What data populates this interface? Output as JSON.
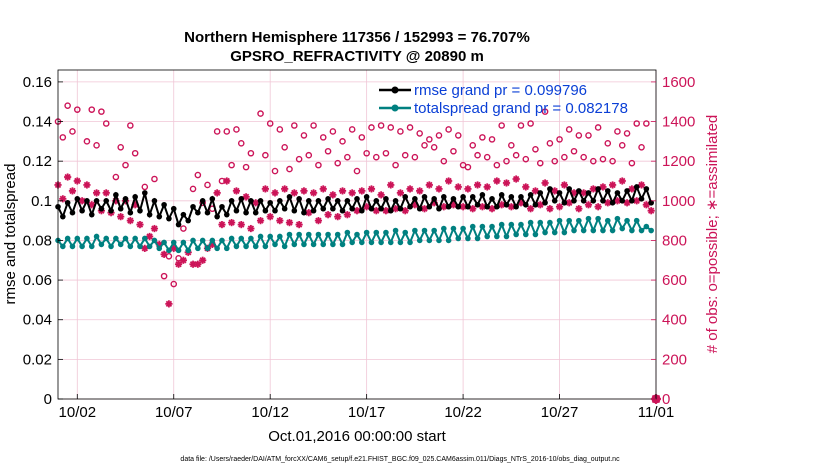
{
  "chart_data": {
    "type": "line",
    "title_line1": "Northern Hemisphere 117356 / 152993 = 76.707%",
    "title_line2": "GPSRO_REFRACTIVITY @ 20890 m",
    "xlabel": "Oct.01,2016 00:00:00 start",
    "ylabel_left": "rmse and totalspread",
    "ylabel_right": "# of obs: o=possible; ∗=assimilated",
    "footnote": "data file: /Users/raeder/DAI/ATM_forcXX/CAM6_setup/f.e21.FHIST_BGC.f09_025.CAM6assim.011/Diags_NTrS_2016-10/obs_diag_output.nc",
    "x_ticks": [
      {
        "value": 1.0,
        "label": "10/02"
      },
      {
        "value": 6.0,
        "label": "10/07"
      },
      {
        "value": 11.0,
        "label": "10/12"
      },
      {
        "value": 16.0,
        "label": "10/17"
      },
      {
        "value": 21.0,
        "label": "10/22"
      },
      {
        "value": 26.0,
        "label": "10/27"
      },
      {
        "value": 31.0,
        "label": "11/01"
      }
    ],
    "xlim": [
      0.0,
      31.0
    ],
    "y_left_ticks": [
      "0",
      "0.02",
      "0.04",
      "0.06",
      "0.08",
      "0.1",
      "0.12",
      "0.14",
      "0.16"
    ],
    "y_left_lim": [
      0,
      0.166
    ],
    "y_right_ticks": [
      "0",
      "200",
      "400",
      "600",
      "800",
      "1000",
      "1200",
      "1400",
      "1600"
    ],
    "y_right_lim": [
      0,
      1660
    ],
    "grid": true,
    "legend_position": "top-right",
    "colors": {
      "rmse": "#000000",
      "totalspread": "#008080",
      "obs": "#cc1458",
      "grid": "#f0c6d6",
      "legend_text": "#0a3fd6"
    },
    "series": [
      {
        "name": "rmse grand pr = 0.099796",
        "axis": "left",
        "marker": "dot",
        "x": [
          0.0,
          0.25,
          0.5,
          0.75,
          1.0,
          1.25,
          1.5,
          1.75,
          2.0,
          2.25,
          2.5,
          2.75,
          3.0,
          3.25,
          3.5,
          3.75,
          4.0,
          4.25,
          4.5,
          4.75,
          5.0,
          5.25,
          5.5,
          5.75,
          6.0,
          6.25,
          6.5,
          6.75,
          7.0,
          7.25,
          7.5,
          7.75,
          8.0,
          8.25,
          8.5,
          8.75,
          9.0,
          9.25,
          9.5,
          9.75,
          10.0,
          10.25,
          10.5,
          10.75,
          11.0,
          11.25,
          11.5,
          11.75,
          12.0,
          12.25,
          12.5,
          12.75,
          13.0,
          13.25,
          13.5,
          13.75,
          14.0,
          14.25,
          14.5,
          14.75,
          15.0,
          15.25,
          15.5,
          15.75,
          16.0,
          16.25,
          16.5,
          16.75,
          17.0,
          17.25,
          17.5,
          17.75,
          18.0,
          18.25,
          18.5,
          18.75,
          19.0,
          19.25,
          19.5,
          19.75,
          20.0,
          20.25,
          20.5,
          20.75,
          21.0,
          21.25,
          21.5,
          21.75,
          22.0,
          22.25,
          22.5,
          22.75,
          23.0,
          23.25,
          23.5,
          23.75,
          24.0,
          24.25,
          24.5,
          24.75,
          25.0,
          25.25,
          25.5,
          25.75,
          26.0,
          26.25,
          26.5,
          26.75,
          27.0,
          27.25,
          27.5,
          27.75,
          28.0,
          28.25,
          28.5,
          28.75,
          29.0,
          29.25,
          29.5,
          29.75,
          30.0,
          30.25,
          30.5,
          30.75
        ],
        "values": [
          0.097,
          0.092,
          0.099,
          0.094,
          0.101,
          0.095,
          0.1,
          0.093,
          0.1,
          0.096,
          0.1,
          0.095,
          0.103,
          0.096,
          0.101,
          0.094,
          0.102,
          0.095,
          0.104,
          0.093,
          0.1,
          0.092,
          0.098,
          0.091,
          0.096,
          0.088,
          0.093,
          0.09,
          0.097,
          0.094,
          0.1,
          0.094,
          0.101,
          0.092,
          0.097,
          0.093,
          0.1,
          0.095,
          0.101,
          0.094,
          0.1,
          0.094,
          0.1,
          0.095,
          0.099,
          0.095,
          0.1,
          0.096,
          0.102,
          0.095,
          0.101,
          0.094,
          0.1,
          0.095,
          0.1,
          0.096,
          0.101,
          0.096,
          0.1,
          0.095,
          0.1,
          0.096,
          0.101,
          0.095,
          0.102,
          0.096,
          0.1,
          0.096,
          0.101,
          0.095,
          0.1,
          0.096,
          0.102,
          0.097,
          0.101,
          0.096,
          0.102,
          0.097,
          0.101,
          0.096,
          0.102,
          0.097,
          0.101,
          0.097,
          0.102,
          0.097,
          0.102,
          0.098,
          0.103,
          0.097,
          0.101,
          0.097,
          0.103,
          0.098,
          0.102,
          0.097,
          0.102,
          0.098,
          0.103,
          0.098,
          0.104,
          0.099,
          0.106,
          0.1,
          0.104,
          0.099,
          0.106,
          0.1,
          0.105,
          0.1,
          0.104,
          0.1,
          0.106,
          0.1,
          0.105,
          0.099,
          0.104,
          0.1,
          0.105,
          0.1,
          0.107,
          0.101,
          0.106,
          0.099
        ]
      },
      {
        "name": "totalspread grand pr = 0.082178",
        "axis": "left",
        "marker": "dot",
        "x": [
          0.0,
          0.25,
          0.5,
          0.75,
          1.0,
          1.25,
          1.5,
          1.75,
          2.0,
          2.25,
          2.5,
          2.75,
          3.0,
          3.25,
          3.5,
          3.75,
          4.0,
          4.25,
          4.5,
          4.75,
          5.0,
          5.25,
          5.5,
          5.75,
          6.0,
          6.25,
          6.5,
          6.75,
          7.0,
          7.25,
          7.5,
          7.75,
          8.0,
          8.25,
          8.5,
          8.75,
          9.0,
          9.25,
          9.5,
          9.75,
          10.0,
          10.25,
          10.5,
          10.75,
          11.0,
          11.25,
          11.5,
          11.75,
          12.0,
          12.25,
          12.5,
          12.75,
          13.0,
          13.25,
          13.5,
          13.75,
          14.0,
          14.25,
          14.5,
          14.75,
          15.0,
          15.25,
          15.5,
          15.75,
          16.0,
          16.25,
          16.5,
          16.75,
          17.0,
          17.25,
          17.5,
          17.75,
          18.0,
          18.25,
          18.5,
          18.75,
          19.0,
          19.25,
          19.5,
          19.75,
          20.0,
          20.25,
          20.5,
          20.75,
          21.0,
          21.25,
          21.5,
          21.75,
          22.0,
          22.25,
          22.5,
          22.75,
          23.0,
          23.25,
          23.5,
          23.75,
          24.0,
          24.25,
          24.5,
          24.75,
          25.0,
          25.25,
          25.5,
          25.75,
          26.0,
          26.25,
          26.5,
          26.75,
          27.0,
          27.25,
          27.5,
          27.75,
          28.0,
          28.25,
          28.5,
          28.75,
          29.0,
          29.25,
          29.5,
          29.75,
          30.0,
          30.25,
          30.5,
          30.75
        ],
        "values": [
          0.08,
          0.077,
          0.081,
          0.077,
          0.081,
          0.077,
          0.081,
          0.077,
          0.082,
          0.078,
          0.081,
          0.077,
          0.081,
          0.078,
          0.081,
          0.077,
          0.081,
          0.077,
          0.081,
          0.077,
          0.08,
          0.076,
          0.079,
          0.075,
          0.079,
          0.075,
          0.079,
          0.075,
          0.08,
          0.076,
          0.08,
          0.076,
          0.08,
          0.076,
          0.08,
          0.076,
          0.081,
          0.077,
          0.081,
          0.077,
          0.081,
          0.077,
          0.082,
          0.077,
          0.082,
          0.078,
          0.082,
          0.077,
          0.083,
          0.078,
          0.083,
          0.078,
          0.083,
          0.078,
          0.083,
          0.078,
          0.083,
          0.078,
          0.083,
          0.078,
          0.084,
          0.079,
          0.083,
          0.079,
          0.084,
          0.079,
          0.084,
          0.079,
          0.084,
          0.079,
          0.085,
          0.079,
          0.084,
          0.079,
          0.085,
          0.08,
          0.085,
          0.08,
          0.085,
          0.08,
          0.086,
          0.08,
          0.086,
          0.081,
          0.086,
          0.081,
          0.087,
          0.081,
          0.087,
          0.082,
          0.087,
          0.082,
          0.088,
          0.082,
          0.088,
          0.083,
          0.088,
          0.083,
          0.089,
          0.083,
          0.089,
          0.084,
          0.089,
          0.084,
          0.09,
          0.084,
          0.09,
          0.085,
          0.09,
          0.085,
          0.091,
          0.085,
          0.091,
          0.085,
          0.09,
          0.085,
          0.091,
          0.086,
          0.09,
          0.085,
          0.09,
          0.085,
          0.087,
          0.085
        ]
      },
      {
        "name": "obs possible",
        "axis": "right",
        "marker": "circle",
        "x": [
          0.0,
          0.25,
          0.5,
          0.75,
          1.0,
          1.5,
          1.75,
          2.0,
          2.25,
          2.5,
          3.0,
          3.25,
          3.5,
          3.75,
          4.0,
          4.5,
          5.0,
          5.5,
          5.75,
          6.0,
          6.25,
          6.5,
          7.0,
          7.25,
          7.5,
          7.75,
          8.0,
          8.25,
          8.5,
          8.75,
          9.0,
          9.25,
          9.5,
          9.75,
          10.0,
          10.5,
          10.75,
          11.0,
          11.25,
          11.5,
          11.75,
          12.0,
          12.25,
          12.5,
          12.75,
          13.0,
          13.25,
          13.5,
          13.75,
          14.0,
          14.25,
          14.5,
          14.75,
          15.0,
          15.25,
          15.5,
          15.75,
          16.0,
          16.25,
          16.5,
          16.75,
          17.0,
          17.25,
          17.5,
          17.75,
          18.0,
          18.25,
          18.5,
          18.75,
          19.0,
          19.25,
          19.5,
          19.75,
          20.0,
          20.25,
          20.5,
          20.75,
          21.0,
          21.25,
          21.5,
          21.75,
          22.0,
          22.25,
          22.5,
          22.75,
          23.0,
          23.25,
          23.5,
          23.75,
          24.0,
          24.25,
          24.5,
          24.75,
          25.0,
          25.25,
          25.5,
          25.75,
          26.0,
          26.25,
          26.5,
          26.75,
          27.0,
          27.25,
          27.5,
          27.75,
          28.0,
          28.25,
          28.5,
          28.75,
          29.0,
          29.25,
          29.5,
          29.75,
          30.0,
          30.25,
          30.5
        ],
        "values": [
          1400,
          1320,
          1480,
          1350,
          1460,
          1300,
          1460,
          1280,
          1450,
          1390,
          1120,
          1270,
          1180,
          1380,
          1240,
          1070,
          1110,
          620,
          720,
          580,
          710,
          860,
          1060,
          1130,
          990,
          1080,
          960,
          1350,
          1100,
          1350,
          1180,
          1360,
          1290,
          1170,
          1240,
          1440,
          1230,
          1390,
          1150,
          1360,
          1270,
          1160,
          1380,
          1210,
          1330,
          1230,
          1380,
          1180,
          1320,
          1250,
          1350,
          1190,
          1300,
          1220,
          1360,
          1150,
          1320,
          1240,
          1370,
          1220,
          1380,
          1240,
          1370,
          1180,
          1350,
          1230,
          1370,
          1220,
          1340,
          1280,
          1310,
          1270,
          1330,
          1200,
          1360,
          1250,
          1330,
          1180,
          1170,
          1280,
          1230,
          1320,
          1220,
          1310,
          1180,
          1380,
          1200,
          1280,
          1230,
          1380,
          1210,
          1390,
          1260,
          1190,
          1450,
          1290,
          1200,
          1310,
          1220,
          1360,
          1250,
          1330,
          1220,
          1330,
          1200,
          1370,
          1210,
          1290,
          1200,
          1350,
          1280,
          1340,
          1190,
          1390,
          1270,
          1390
        ],
        "end_point": {
          "x": 31.0,
          "value": 0
        }
      },
      {
        "name": "obs assimilated",
        "axis": "right",
        "marker": "star",
        "x": [
          0.0,
          0.25,
          0.5,
          0.75,
          1.0,
          1.25,
          1.5,
          1.75,
          2.0,
          2.25,
          2.5,
          2.75,
          3.0,
          3.25,
          3.5,
          3.75,
          4.0,
          4.25,
          4.5,
          4.75,
          5.0,
          5.25,
          5.5,
          5.75,
          6.0,
          6.25,
          6.5,
          6.75,
          7.0,
          7.25,
          7.5,
          7.75,
          8.0,
          8.25,
          8.5,
          8.75,
          9.0,
          9.25,
          9.5,
          9.75,
          10.0,
          10.25,
          10.5,
          10.75,
          11.0,
          11.25,
          11.5,
          11.75,
          12.0,
          12.25,
          12.5,
          12.75,
          13.0,
          13.25,
          13.5,
          13.75,
          14.0,
          14.25,
          14.5,
          14.75,
          15.0,
          15.25,
          15.5,
          15.75,
          16.0,
          16.25,
          16.5,
          16.75,
          17.0,
          17.25,
          17.5,
          17.75,
          18.0,
          18.25,
          18.5,
          18.75,
          19.0,
          19.25,
          19.5,
          19.75,
          20.0,
          20.25,
          20.5,
          20.75,
          21.0,
          21.25,
          21.5,
          21.75,
          22.0,
          22.25,
          22.5,
          22.75,
          23.0,
          23.25,
          23.5,
          23.75,
          24.0,
          24.25,
          24.5,
          24.75,
          25.0,
          25.25,
          25.5,
          25.75,
          26.0,
          26.25,
          26.5,
          26.75,
          27.0,
          27.25,
          27.5,
          27.75,
          28.0,
          28.25,
          28.5,
          28.75,
          29.0,
          29.25,
          29.5,
          29.75,
          30.0,
          30.25,
          30.5,
          30.75
        ],
        "values": [
          1080,
          1010,
          1120,
          1050,
          1100,
          1000,
          1080,
          980,
          1040,
          950,
          1040,
          940,
          1000,
          920,
          1000,
          900,
          980,
          880,
          760,
          820,
          860,
          780,
          730,
          480,
          760,
          680,
          700,
          740,
          680,
          680,
          700,
          760,
          780,
          1040,
          880,
          1100,
          890,
          1050,
          880,
          1020,
          860,
          990,
          900,
          1060,
          920,
          1040,
          900,
          1060,
          890,
          1040,
          880,
          1050,
          940,
          1040,
          900,
          1060,
          930,
          1030,
          920,
          1050,
          930,
          1040,
          950,
          1050,
          970,
          1060,
          950,
          1030,
          950,
          1080,
          960,
          1040,
          950,
          1060,
          980,
          1050,
          960,
          1080,
          990,
          1060,
          970,
          1100,
          980,
          1070,
          970,
          1060,
          960,
          1080,
          970,
          1070,
          960,
          1100,
          980,
          1090,
          970,
          1110,
          990,
          1070,
          960,
          1050,
          980,
          1090,
          960,
          1050,
          970,
          1080,
          990,
          1040,
          960,
          1040,
          980,
          1060,
          970,
          1070,
          990,
          1080,
          1000,
          1100,
          990,
          1060,
          1000,
          1080,
          980,
          950
        ]
      }
    ]
  }
}
